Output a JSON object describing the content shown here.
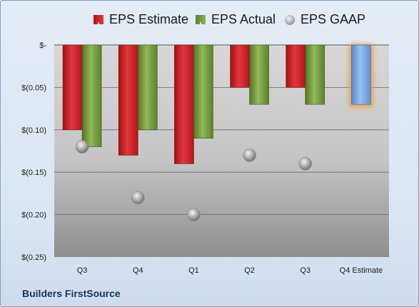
{
  "chart_data": {
    "type": "bar",
    "categories": [
      "Q3",
      "Q4",
      "Q1",
      "Q2",
      "Q3",
      "Q4 Estimate"
    ],
    "series": [
      {
        "name": "EPS Estimate",
        "values": [
          -0.1,
          -0.13,
          -0.14,
          -0.05,
          -0.05,
          null
        ],
        "color": "#d42027"
      },
      {
        "name": "EPS Actual",
        "values": [
          -0.12,
          -0.1,
          -0.11,
          -0.07,
          -0.07,
          null
        ],
        "color": "#7ea443"
      },
      {
        "name": "EPS GAAP",
        "values": [
          -0.12,
          -0.18,
          -0.2,
          -0.13,
          -0.14,
          null
        ],
        "color": "#a8a8a8"
      },
      {
        "name": "Q4 Estimate",
        "values": [
          null,
          null,
          null,
          null,
          null,
          -0.07
        ],
        "color": "#6d9de0"
      }
    ],
    "y_ticks": [
      "$-",
      "$(0.05)",
      "$(0.10)",
      "$(0.15)",
      "$(0.20)",
      "$(0.25)"
    ],
    "ylim": [
      -0.25,
      0
    ],
    "grid": true,
    "legend_position": "top"
  },
  "legend": {
    "estimate": "EPS Estimate",
    "actual": "EPS Actual",
    "gaap": "EPS GAAP"
  },
  "footer": {
    "company": "Builders FirstSource"
  }
}
